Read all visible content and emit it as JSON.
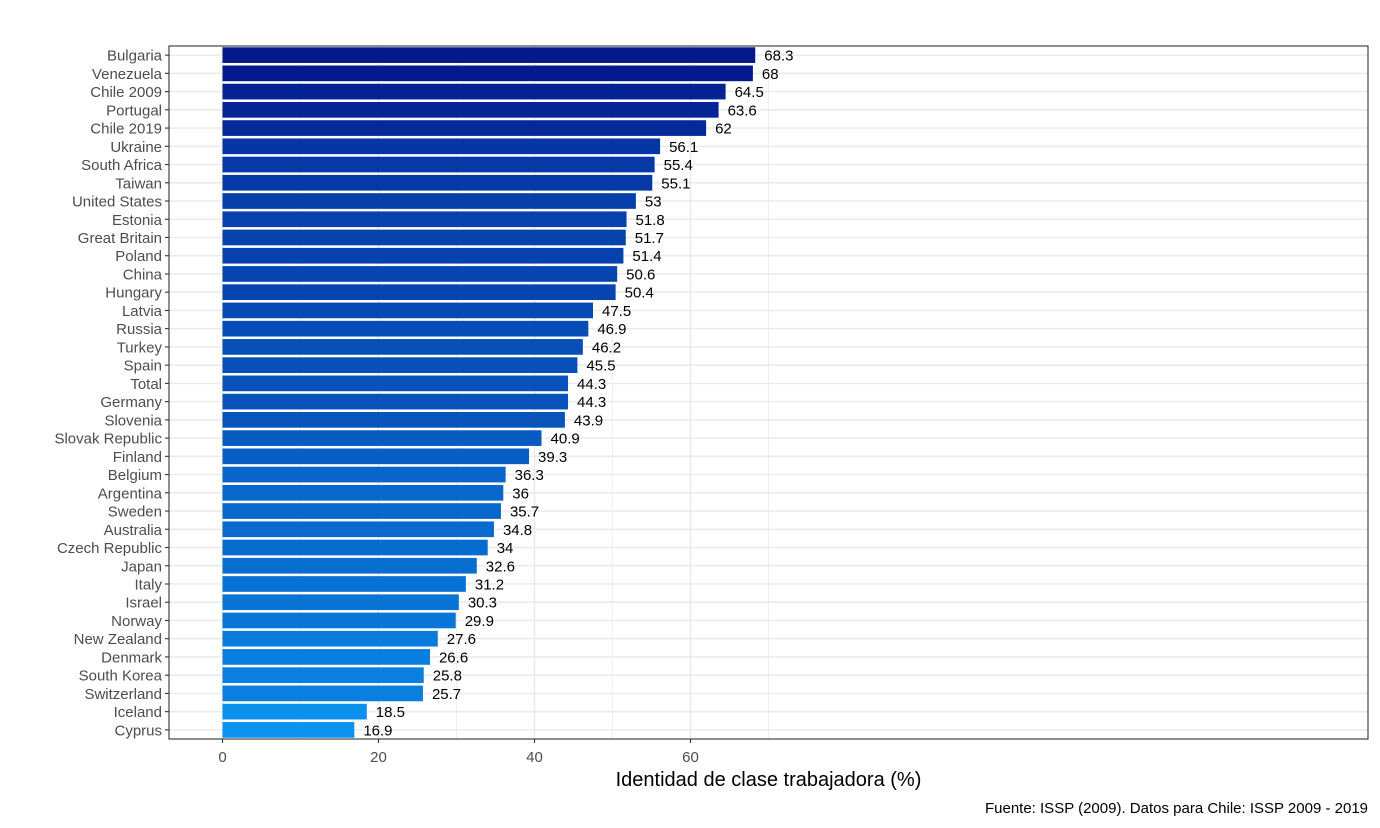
{
  "chart_data": {
    "type": "bar",
    "orientation": "horizontal",
    "categories": [
      "Bulgaria",
      "Venezuela",
      "Chile 2009",
      "Portugal",
      "Chile 2019",
      "Ukraine",
      "South Africa",
      "Taiwan",
      "United States",
      "Estonia",
      "Great Britain",
      "Poland",
      "China",
      "Hungary",
      "Latvia",
      "Russia",
      "Turkey",
      "Spain",
      "Total",
      "Germany",
      "Slovenia",
      "Slovak Republic",
      "Finland",
      "Belgium",
      "Argentina",
      "Sweden",
      "Australia",
      "Czech Republic",
      "Japan",
      "Italy",
      "Israel",
      "Norway",
      "New Zealand",
      "Denmark",
      "South Korea",
      "Switzerland",
      "Iceland",
      "Cyprus"
    ],
    "values": [
      68.3,
      68,
      64.5,
      63.6,
      62,
      56.1,
      55.4,
      55.1,
      53,
      51.8,
      51.7,
      51.4,
      50.6,
      50.4,
      47.5,
      46.9,
      46.2,
      45.5,
      44.3,
      44.3,
      43.9,
      40.9,
      39.3,
      36.3,
      36,
      35.7,
      34.8,
      34,
      32.6,
      31.2,
      30.3,
      29.9,
      27.6,
      26.6,
      25.8,
      25.7,
      18.5,
      16.9
    ],
    "value_labels": [
      "68.3",
      "68",
      "64.5",
      "63.6",
      "62",
      "56.1",
      "55.4",
      "55.1",
      "53",
      "51.8",
      "51.7",
      "51.4",
      "50.6",
      "50.4",
      "47.5",
      "46.9",
      "46.2",
      "45.5",
      "44.3",
      "44.3",
      "43.9",
      "40.9",
      "39.3",
      "36.3",
      "36",
      "35.7",
      "34.8",
      "34",
      "32.6",
      "31.2",
      "30.3",
      "29.9",
      "27.6",
      "26.6",
      "25.8",
      "25.7",
      "18.5",
      "16.9"
    ],
    "xlabel": "Identidad de clase trabajadora (%)",
    "ylabel": "",
    "xlim": [
      -3.4,
      73.4
    ],
    "xticks": [
      0,
      20,
      40,
      60
    ],
    "xtick_labels": [
      "0",
      "20",
      "40",
      "60"
    ],
    "grid": true,
    "caption": "Fuente: ISSP (2009). Datos para Chile: ISSP 2009 - 2019",
    "color_scale": {
      "low": "#0a94f0",
      "high": "#041a8c"
    }
  }
}
